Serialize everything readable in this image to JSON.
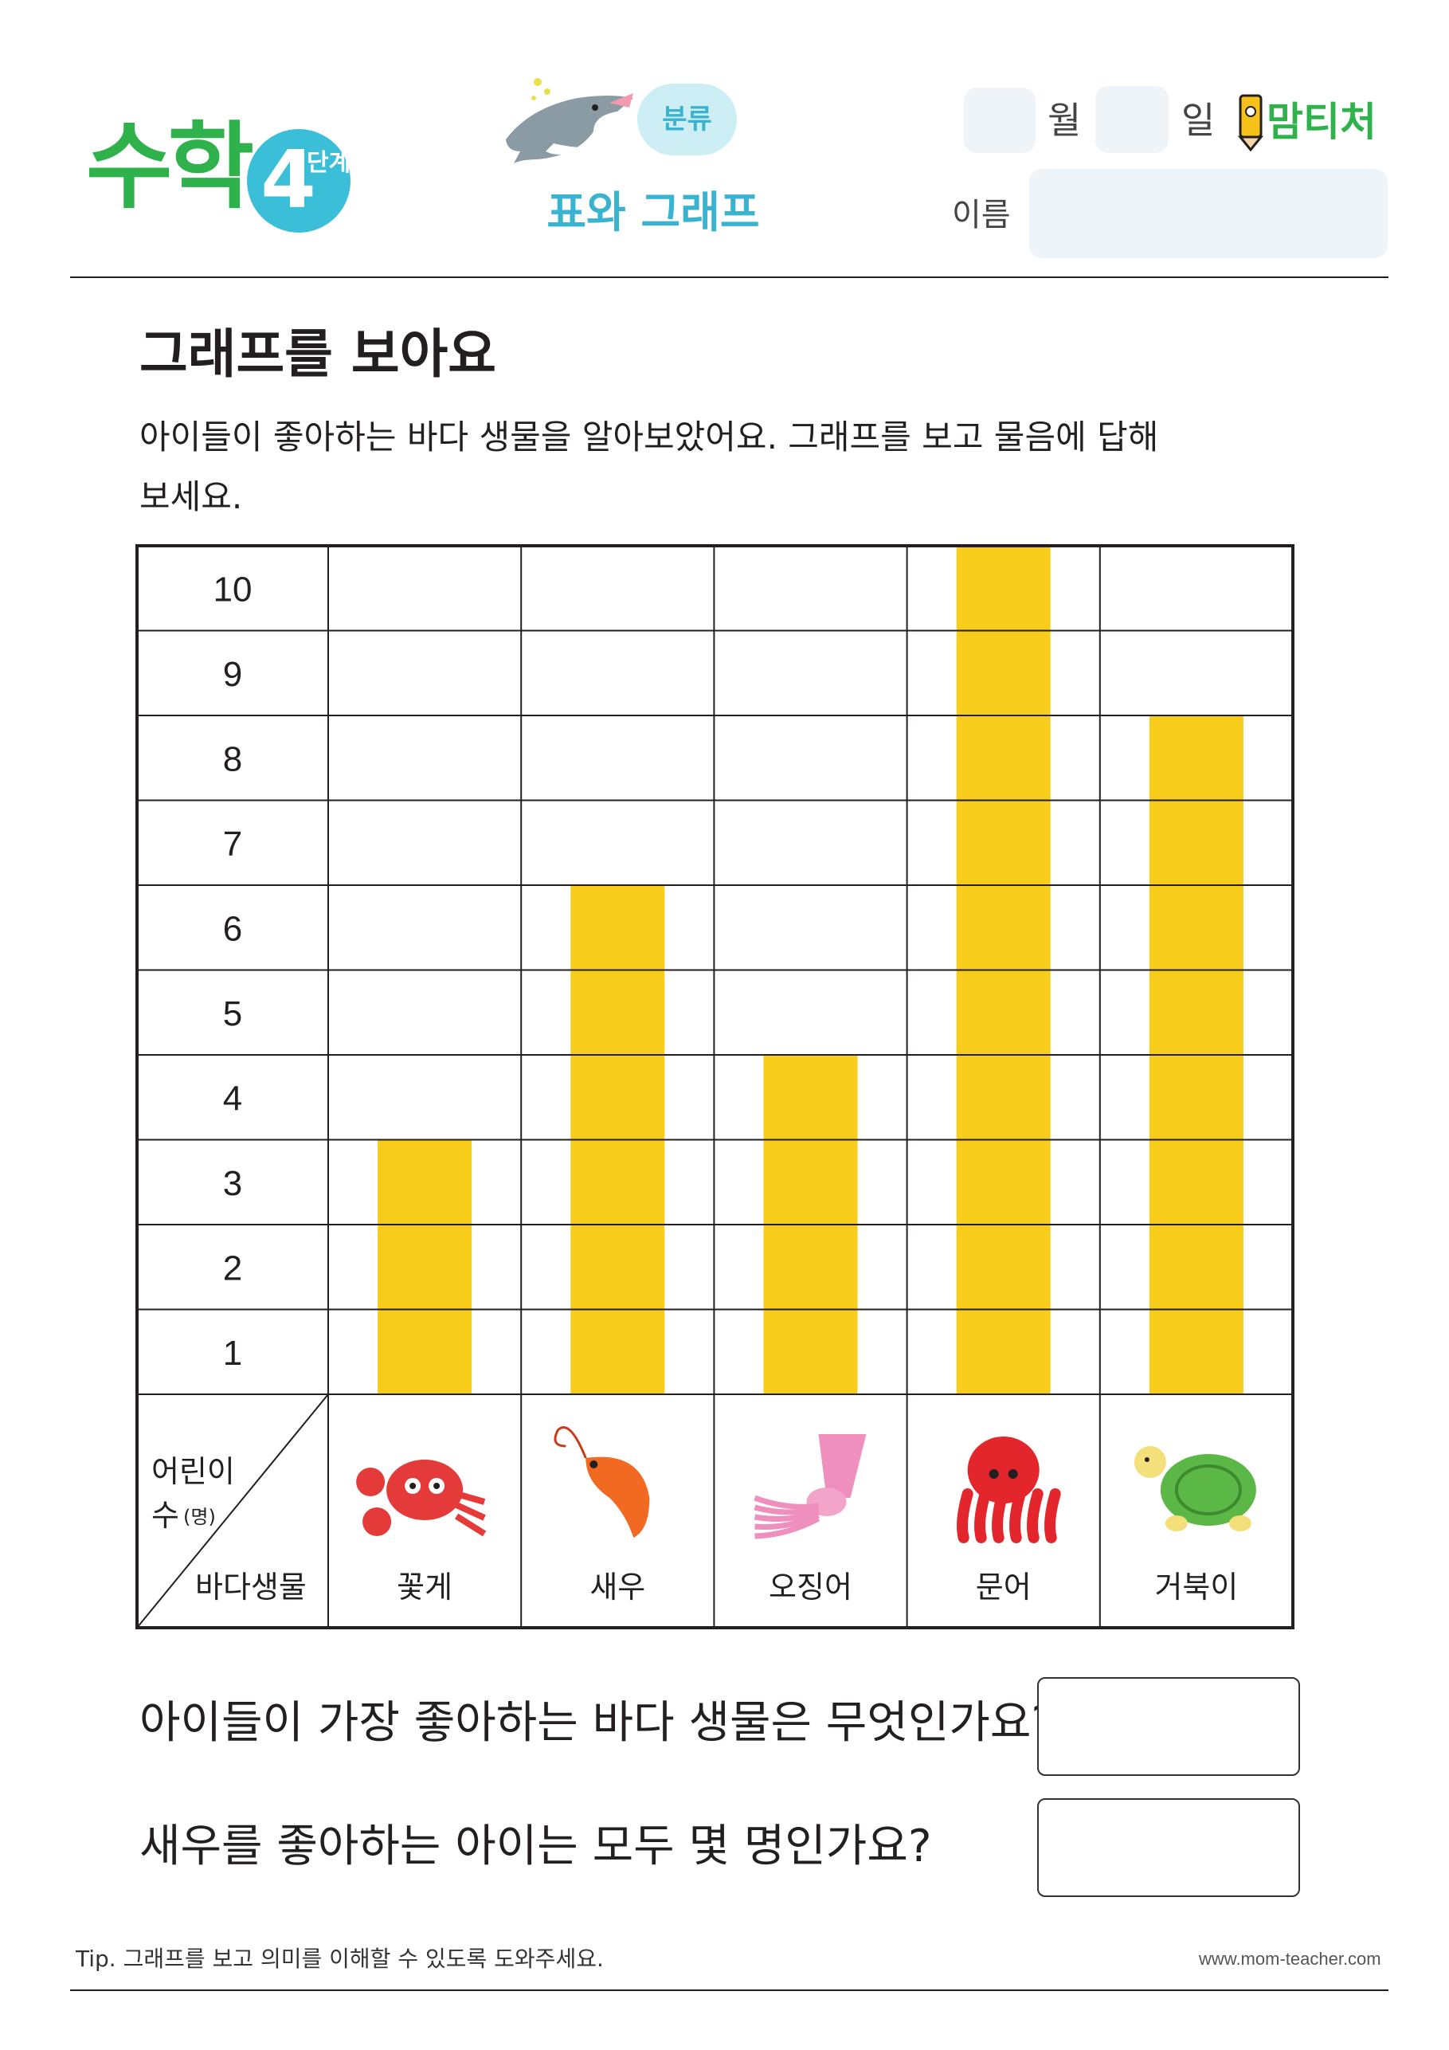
{
  "header": {
    "logo": "수학",
    "level_number": "4",
    "level_word": "단계",
    "topic_label": "분류",
    "subtitle": "표와 그래프",
    "month_label": "월",
    "day_label": "일",
    "brand": "맘티처",
    "name_label": "이름"
  },
  "section": {
    "title": "그래프를 보아요",
    "instruction_line1": "아이들이 좋아하는 바다 생물을 알아보았어요. 그래프를 보고 물음에 답해",
    "instruction_line2": "보세요."
  },
  "chart_data": {
    "type": "bar",
    "categories": [
      "꽃게",
      "새우",
      "오징어",
      "문어",
      "거북이"
    ],
    "values": [
      3,
      6,
      4,
      10,
      8
    ],
    "y_ticks": [
      1,
      2,
      3,
      4,
      5,
      6,
      7,
      8,
      9,
      10
    ],
    "ylim": [
      0,
      10
    ],
    "bar_color": "#f8cc1b",
    "grid": true,
    "ylabel_line1": "어린이",
    "ylabel_line2": "수",
    "ylabel_unit": "(명)",
    "xlabel": "바다생물",
    "category_icons": [
      "crab-icon",
      "shrimp-icon",
      "squid-icon",
      "octopus-icon",
      "turtle-icon"
    ]
  },
  "questions": [
    {
      "text": "아이들이 가장 좋아하는 바다 생물은 무엇인가요?"
    },
    {
      "text": "새우를 좋아하는 아이는 모두 몇 명인가요?"
    }
  ],
  "footer": {
    "tip": "Tip. 그래프를 보고 의미를 이해할 수 있도록 도와주세요.",
    "website": "www.mom-teacher.com"
  }
}
